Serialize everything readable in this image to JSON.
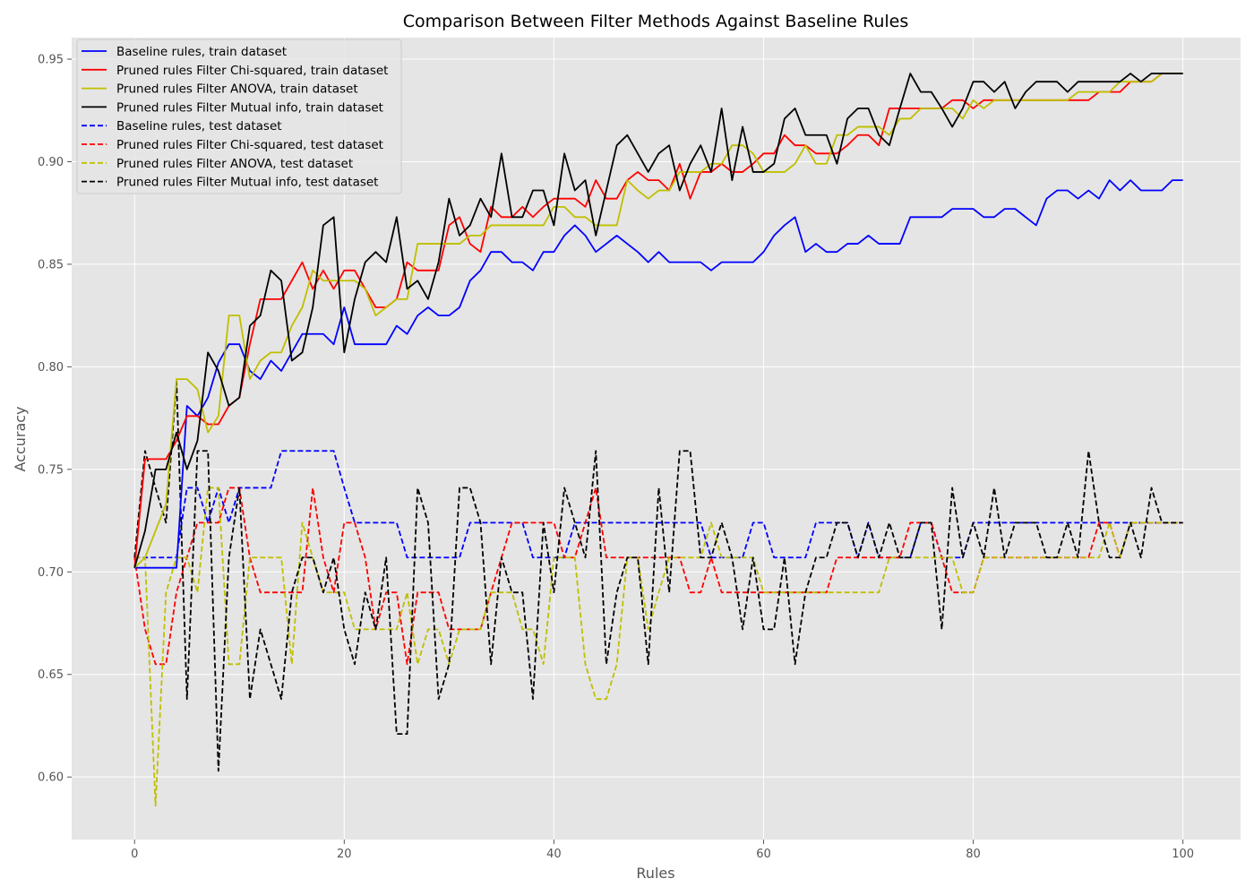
{
  "chart_data": {
    "type": "line",
    "title": "Comparison Between Filter Methods Against Baseline Rules",
    "xlabel": "Rules",
    "ylabel": "Accuracy",
    "xlim": [
      -6,
      105.5
    ],
    "ylim": [
      0.5695,
      0.9605
    ],
    "xticks": [
      0,
      20,
      40,
      60,
      80,
      100
    ],
    "yticks": [
      0.6,
      0.65,
      0.7,
      0.75,
      0.8,
      0.85,
      0.9,
      0.95
    ],
    "grid": true,
    "legend_position": "top-left",
    "x": [
      0,
      1,
      2,
      3,
      4,
      5,
      6,
      7,
      8,
      9,
      10,
      11,
      12,
      13,
      14,
      15,
      16,
      17,
      18,
      19,
      20,
      21,
      22,
      23,
      24,
      25,
      26,
      27,
      28,
      29,
      30,
      31,
      32,
      33,
      34,
      35,
      36,
      37,
      38,
      39,
      40,
      41,
      42,
      43,
      44,
      45,
      46,
      47,
      48,
      49,
      50,
      51,
      52,
      53,
      54,
      55,
      56,
      57,
      58,
      59,
      60,
      61,
      62,
      63,
      64,
      65,
      66,
      67,
      68,
      69,
      70,
      71,
      72,
      73,
      74,
      75,
      76,
      77,
      78,
      79,
      80,
      81,
      82,
      83,
      84,
      85,
      86,
      87,
      88,
      89,
      90,
      91,
      92,
      93,
      94,
      95,
      96,
      97,
      98,
      99,
      100
    ],
    "series": [
      {
        "name": "Baseline rules, train dataset",
        "color": "#0000ff",
        "style": "solid",
        "values": [
          0.702,
          0.702,
          0.702,
          0.702,
          0.702,
          0.781,
          0.776,
          0.785,
          0.802,
          0.811,
          0.811,
          0.798,
          0.794,
          0.803,
          0.798,
          0.807,
          0.816,
          0.816,
          0.816,
          0.811,
          0.829,
          0.811,
          0.811,
          0.811,
          0.811,
          0.82,
          0.816,
          0.825,
          0.829,
          0.825,
          0.825,
          0.829,
          0.842,
          0.847,
          0.856,
          0.856,
          0.851,
          0.851,
          0.847,
          0.856,
          0.856,
          0.864,
          0.869,
          0.864,
          0.856,
          0.86,
          0.864,
          0.86,
          0.856,
          0.851,
          0.856,
          0.851,
          0.851,
          0.851,
          0.851,
          0.847,
          0.851,
          0.851,
          0.851,
          0.851,
          0.856,
          0.864,
          0.869,
          0.873,
          0.856,
          0.86,
          0.856,
          0.856,
          0.86,
          0.86,
          0.864,
          0.86,
          0.86,
          0.86,
          0.873,
          0.873,
          0.873,
          0.873,
          0.877,
          0.877,
          0.877,
          0.873,
          0.873,
          0.877,
          0.877,
          0.873,
          0.869,
          0.882,
          0.886,
          0.886,
          0.882,
          0.886,
          0.882,
          0.891,
          0.886,
          0.891,
          0.886,
          0.886,
          0.886,
          0.891,
          0.891
        ]
      },
      {
        "name": "Pruned rules Filter Chi-squared, train dataset",
        "color": "#ff0000",
        "style": "solid",
        "values": [
          0.702,
          0.755,
          0.755,
          0.755,
          0.764,
          0.776,
          0.776,
          0.772,
          0.772,
          0.781,
          0.785,
          0.811,
          0.833,
          0.833,
          0.833,
          0.842,
          0.851,
          0.838,
          0.847,
          0.838,
          0.847,
          0.847,
          0.838,
          0.829,
          0.829,
          0.833,
          0.851,
          0.847,
          0.847,
          0.847,
          0.869,
          0.873,
          0.86,
          0.856,
          0.878,
          0.873,
          0.873,
          0.878,
          0.873,
          0.878,
          0.882,
          0.882,
          0.882,
          0.878,
          0.891,
          0.882,
          0.882,
          0.891,
          0.895,
          0.891,
          0.891,
          0.886,
          0.899,
          0.882,
          0.895,
          0.895,
          0.899,
          0.895,
          0.895,
          0.899,
          0.904,
          0.904,
          0.913,
          0.908,
          0.908,
          0.904,
          0.904,
          0.904,
          0.908,
          0.913,
          0.913,
          0.908,
          0.926,
          0.926,
          0.926,
          0.926,
          0.926,
          0.926,
          0.93,
          0.93,
          0.926,
          0.93,
          0.93,
          0.93,
          0.93,
          0.93,
          0.93,
          0.93,
          0.93,
          0.93,
          0.93,
          0.93,
          0.934,
          0.934,
          0.934,
          0.939,
          0.939,
          0.939,
          0.943,
          0.943,
          0.943
        ]
      },
      {
        "name": "Pruned rules Filter ANOVA, train dataset",
        "color": "#bfbf00",
        "style": "solid",
        "values": [
          0.702,
          0.707,
          0.72,
          0.733,
          0.794,
          0.794,
          0.789,
          0.768,
          0.776,
          0.825,
          0.825,
          0.794,
          0.803,
          0.807,
          0.807,
          0.82,
          0.829,
          0.847,
          0.842,
          0.842,
          0.842,
          0.842,
          0.838,
          0.825,
          0.829,
          0.833,
          0.833,
          0.86,
          0.86,
          0.86,
          0.86,
          0.86,
          0.864,
          0.864,
          0.869,
          0.869,
          0.869,
          0.869,
          0.869,
          0.869,
          0.878,
          0.878,
          0.873,
          0.873,
          0.869,
          0.869,
          0.869,
          0.891,
          0.886,
          0.882,
          0.886,
          0.886,
          0.895,
          0.895,
          0.895,
          0.899,
          0.899,
          0.908,
          0.908,
          0.904,
          0.895,
          0.895,
          0.895,
          0.899,
          0.908,
          0.899,
          0.899,
          0.913,
          0.913,
          0.917,
          0.917,
          0.917,
          0.913,
          0.921,
          0.921,
          0.926,
          0.926,
          0.926,
          0.926,
          0.921,
          0.93,
          0.926,
          0.93,
          0.93,
          0.93,
          0.93,
          0.93,
          0.93,
          0.93,
          0.93,
          0.934,
          0.934,
          0.934,
          0.934,
          0.939,
          0.939,
          0.939,
          0.939,
          0.943,
          0.943,
          0.943
        ]
      },
      {
        "name": "Pruned rules Filter Mutual info, train dataset",
        "color": "#000000",
        "style": "solid",
        "values": [
          0.702,
          0.72,
          0.75,
          0.75,
          0.768,
          0.75,
          0.764,
          0.807,
          0.798,
          0.781,
          0.785,
          0.82,
          0.825,
          0.847,
          0.842,
          0.803,
          0.807,
          0.829,
          0.869,
          0.873,
          0.807,
          0.833,
          0.851,
          0.856,
          0.851,
          0.873,
          0.838,
          0.842,
          0.833,
          0.851,
          0.882,
          0.864,
          0.869,
          0.882,
          0.873,
          0.904,
          0.873,
          0.873,
          0.886,
          0.886,
          0.869,
          0.904,
          0.886,
          0.891,
          0.864,
          0.886,
          0.908,
          0.913,
          0.904,
          0.895,
          0.904,
          0.908,
          0.886,
          0.899,
          0.908,
          0.895,
          0.926,
          0.891,
          0.917,
          0.895,
          0.895,
          0.899,
          0.921,
          0.926,
          0.913,
          0.913,
          0.913,
          0.899,
          0.921,
          0.926,
          0.926,
          0.913,
          0.908,
          0.926,
          0.943,
          0.934,
          0.934,
          0.926,
          0.917,
          0.926,
          0.939,
          0.939,
          0.934,
          0.939,
          0.926,
          0.934,
          0.939,
          0.939,
          0.939,
          0.934,
          0.939,
          0.939,
          0.939,
          0.939,
          0.939,
          0.943,
          0.939,
          0.943,
          0.943,
          0.943,
          0.943
        ]
      },
      {
        "name": "Baseline rules, test dataset",
        "color": "#0000ff",
        "style": "dashed",
        "values": [
          0.707,
          0.707,
          0.707,
          0.707,
          0.707,
          0.741,
          0.741,
          0.724,
          0.741,
          0.724,
          0.741,
          0.741,
          0.741,
          0.741,
          0.759,
          0.759,
          0.759,
          0.759,
          0.759,
          0.759,
          0.741,
          0.724,
          0.724,
          0.724,
          0.724,
          0.724,
          0.707,
          0.707,
          0.707,
          0.707,
          0.707,
          0.707,
          0.724,
          0.724,
          0.724,
          0.724,
          0.724,
          0.724,
          0.707,
          0.707,
          0.707,
          0.707,
          0.724,
          0.724,
          0.724,
          0.724,
          0.724,
          0.724,
          0.724,
          0.724,
          0.724,
          0.724,
          0.724,
          0.724,
          0.724,
          0.707,
          0.707,
          0.707,
          0.707,
          0.724,
          0.724,
          0.707,
          0.707,
          0.707,
          0.707,
          0.724,
          0.724,
          0.724,
          0.724,
          0.707,
          0.724,
          0.707,
          0.707,
          0.707,
          0.707,
          0.724,
          0.724,
          0.707,
          0.707,
          0.707,
          0.724,
          0.724,
          0.724,
          0.724,
          0.724,
          0.724,
          0.724,
          0.724,
          0.724,
          0.724,
          0.724,
          0.724,
          0.724,
          0.724,
          0.724,
          0.724,
          0.724,
          0.724,
          0.724,
          0.724,
          0.724
        ]
      },
      {
        "name": "Pruned rules Filter Chi-squared, test dataset",
        "color": "#ff0000",
        "style": "dashed",
        "values": [
          0.707,
          0.672,
          0.655,
          0.655,
          0.69,
          0.707,
          0.724,
          0.724,
          0.724,
          0.741,
          0.741,
          0.707,
          0.69,
          0.69,
          0.69,
          0.69,
          0.69,
          0.741,
          0.707,
          0.69,
          0.724,
          0.724,
          0.707,
          0.672,
          0.69,
          0.69,
          0.655,
          0.69,
          0.69,
          0.69,
          0.672,
          0.672,
          0.672,
          0.672,
          0.69,
          0.707,
          0.724,
          0.724,
          0.724,
          0.724,
          0.724,
          0.707,
          0.707,
          0.724,
          0.741,
          0.707,
          0.707,
          0.707,
          0.707,
          0.707,
          0.707,
          0.707,
          0.707,
          0.69,
          0.69,
          0.707,
          0.69,
          0.69,
          0.69,
          0.69,
          0.69,
          0.69,
          0.69,
          0.69,
          0.69,
          0.69,
          0.69,
          0.707,
          0.707,
          0.707,
          0.707,
          0.707,
          0.707,
          0.707,
          0.724,
          0.724,
          0.724,
          0.707,
          0.69,
          0.69,
          0.69,
          0.707,
          0.707,
          0.707,
          0.707,
          0.707,
          0.707,
          0.707,
          0.707,
          0.707,
          0.707,
          0.707,
          0.724,
          0.724,
          0.707,
          0.724,
          0.724,
          0.724,
          0.724,
          0.724,
          0.724
        ]
      },
      {
        "name": "Pruned rules Filter ANOVA, test dataset",
        "color": "#bfbf00",
        "style": "dashed",
        "values": [
          0.707,
          0.707,
          0.586,
          0.69,
          0.707,
          0.707,
          0.69,
          0.741,
          0.741,
          0.655,
          0.655,
          0.707,
          0.707,
          0.707,
          0.707,
          0.655,
          0.724,
          0.707,
          0.69,
          0.69,
          0.69,
          0.672,
          0.672,
          0.672,
          0.672,
          0.672,
          0.69,
          0.655,
          0.672,
          0.672,
          0.655,
          0.672,
          0.672,
          0.672,
          0.69,
          0.69,
          0.69,
          0.672,
          0.672,
          0.655,
          0.707,
          0.707,
          0.707,
          0.655,
          0.638,
          0.638,
          0.655,
          0.707,
          0.707,
          0.672,
          0.69,
          0.707,
          0.707,
          0.707,
          0.707,
          0.724,
          0.707,
          0.707,
          0.707,
          0.707,
          0.69,
          0.69,
          0.69,
          0.69,
          0.69,
          0.69,
          0.69,
          0.69,
          0.69,
          0.69,
          0.69,
          0.69,
          0.707,
          0.707,
          0.707,
          0.707,
          0.707,
          0.707,
          0.707,
          0.69,
          0.69,
          0.707,
          0.707,
          0.707,
          0.707,
          0.707,
          0.707,
          0.707,
          0.707,
          0.707,
          0.707,
          0.707,
          0.707,
          0.724,
          0.707,
          0.724,
          0.724,
          0.724,
          0.724,
          0.724,
          0.724
        ]
      },
      {
        "name": "Pruned rules Filter Mutual info, test dataset",
        "color": "#000000",
        "style": "dashed",
        "values": [
          0.707,
          0.759,
          0.741,
          0.724,
          0.793,
          0.638,
          0.759,
          0.759,
          0.603,
          0.707,
          0.741,
          0.638,
          0.672,
          0.655,
          0.638,
          0.69,
          0.707,
          0.707,
          0.69,
          0.707,
          0.672,
          0.655,
          0.69,
          0.672,
          0.707,
          0.621,
          0.621,
          0.741,
          0.724,
          0.638,
          0.655,
          0.741,
          0.741,
          0.724,
          0.655,
          0.707,
          0.69,
          0.69,
          0.638,
          0.724,
          0.69,
          0.741,
          0.724,
          0.707,
          0.759,
          0.655,
          0.69,
          0.707,
          0.707,
          0.655,
          0.741,
          0.69,
          0.759,
          0.759,
          0.707,
          0.707,
          0.724,
          0.707,
          0.672,
          0.707,
          0.672,
          0.672,
          0.707,
          0.655,
          0.69,
          0.707,
          0.707,
          0.724,
          0.724,
          0.707,
          0.724,
          0.707,
          0.724,
          0.707,
          0.707,
          0.724,
          0.724,
          0.672,
          0.741,
          0.707,
          0.724,
          0.707,
          0.741,
          0.707,
          0.724,
          0.724,
          0.724,
          0.707,
          0.707,
          0.724,
          0.707,
          0.759,
          0.724,
          0.707,
          0.707,
          0.724,
          0.707,
          0.741,
          0.724,
          0.724,
          0.724
        ]
      }
    ]
  }
}
